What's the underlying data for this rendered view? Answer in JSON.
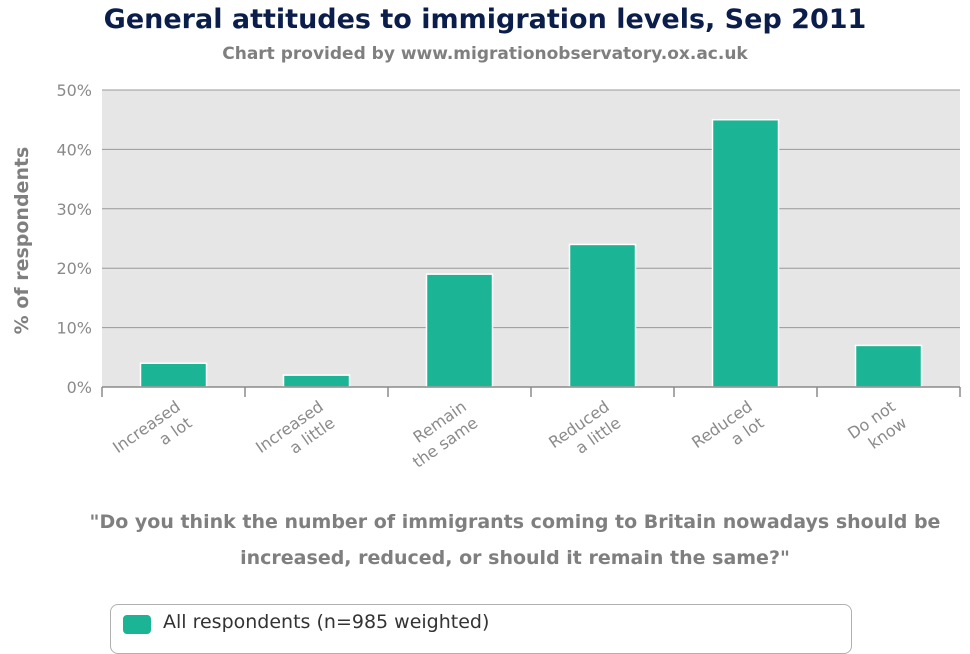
{
  "chart_data": {
    "type": "bar",
    "title": "General attitudes to immigration levels, Sep 2011",
    "subtitle": "Chart provided by www.migrationobservatory.ox.ac.uk",
    "xlabel_lines": [
      "\"Do you think the number of immigrants coming to Britain nowadays should be",
      "increased, reduced, or should it remain the same?\""
    ],
    "ylabel": "% of respondents",
    "categories": [
      [
        "Increased",
        "a lot"
      ],
      [
        "Increased",
        "a little"
      ],
      [
        "Remain",
        "the same"
      ],
      [
        "Reduced",
        "a little"
      ],
      [
        "Reduced",
        "a lot"
      ],
      [
        "Do not",
        "know"
      ]
    ],
    "series": [
      {
        "name": "All respondents (n=985 weighted)",
        "values": [
          4,
          2,
          19,
          24,
          45,
          7
        ]
      }
    ],
    "ylim": [
      0,
      50
    ],
    "yticks": [
      0,
      10,
      20,
      30,
      40,
      50
    ],
    "ytick_labels": [
      "0%",
      "10%",
      "20%",
      "30%",
      "40%",
      "50%"
    ],
    "grid": true,
    "legend_position": "bottom",
    "colors": {
      "bar": "#1bb494",
      "plot_bg": "#e6e6e6",
      "grid": "#999999"
    }
  }
}
